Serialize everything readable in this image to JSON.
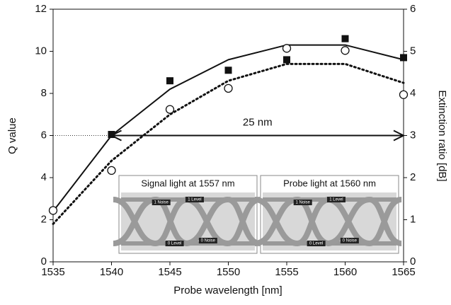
{
  "chart_data": {
    "type": "scatter",
    "x_label": "Probe wavelength [nm]",
    "y_label": "Q value",
    "y2_label": "Extinction ratio [dB]",
    "x": [
      1535,
      1540,
      1545,
      1550,
      1555,
      1560,
      1565
    ],
    "xlim": [
      1535,
      1565
    ],
    "xticks": [
      1535,
      1540,
      1545,
      1550,
      1555,
      1560,
      1565
    ],
    "ylim": [
      0,
      12
    ],
    "yticks": [
      0,
      2,
      4,
      6,
      8,
      10,
      12
    ],
    "y2lim": [
      0,
      6
    ],
    "y2ticks": [
      0,
      1,
      2,
      3,
      4,
      5,
      6
    ],
    "series": [
      {
        "marker": "filled-square",
        "color": "#111111",
        "values": [
          null,
          6.05,
          8.6,
          9.1,
          9.6,
          10.6,
          9.7
        ]
      },
      {
        "marker": "open-circle",
        "color": "#111111",
        "axis": "y2",
        "values": [
          1.22,
          2.17,
          3.62,
          4.12,
          5.07,
          5.02,
          3.97
        ]
      },
      {
        "marker": "solid-line",
        "color": "#111111",
        "values": [
          2.4,
          6.0,
          8.2,
          9.6,
          10.3,
          10.3,
          9.6
        ]
      },
      {
        "marker": "dotted-line",
        "color": "#111111",
        "axis": "y2",
        "values": [
          0.9,
          2.4,
          3.5,
          4.3,
          4.7,
          4.7,
          4.25
        ]
      }
    ],
    "annotation": {
      "text": "25 nm",
      "x": [
        1540,
        1565
      ],
      "y": 6
    },
    "insets": [
      {
        "title": "Signal light at 1557 nm",
        "labels": [
          "1 Noise",
          "1 Level",
          "0 Level",
          "0 Noise"
        ]
      },
      {
        "title": "Probe light at 1560 nm",
        "labels": [
          "1 Noise",
          "1 Level",
          "0 Level",
          "0 Noise"
        ]
      }
    ]
  }
}
